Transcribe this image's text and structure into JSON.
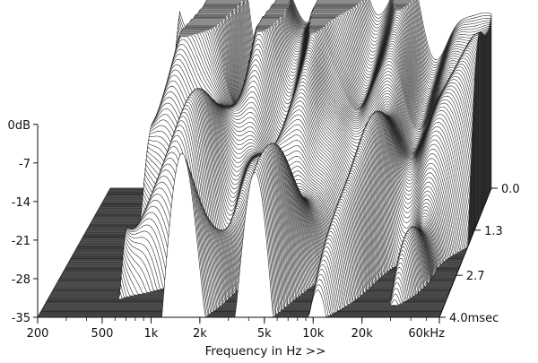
{
  "chart_data": {
    "type": "waterfall",
    "xlabel": "Frequency in Hz >>",
    "x_scale": "log",
    "x_ticks": [
      {
        "value": 200,
        "label": "200"
      },
      {
        "value": 500,
        "label": "500"
      },
      {
        "value": 1000,
        "label": "1k"
      },
      {
        "value": 2000,
        "label": "2k"
      },
      {
        "value": 5000,
        "label": "5k"
      },
      {
        "value": 10000,
        "label": "10k"
      },
      {
        "value": 20000,
        "label": "20k"
      },
      {
        "value": 60000,
        "label": "60kHz"
      }
    ],
    "xlim": [
      200,
      60000
    ],
    "y_ticks": [
      {
        "value": 0,
        "label": "0dB"
      },
      {
        "value": -7,
        "label": "-7"
      },
      {
        "value": -14,
        "label": "-14"
      },
      {
        "value": -21,
        "label": "-21"
      },
      {
        "value": -28,
        "label": "-28"
      },
      {
        "value": -35,
        "label": "-35"
      }
    ],
    "ylim": [
      -35,
      0
    ],
    "t_ticks": [
      {
        "value": 0.0,
        "label": "0.0"
      },
      {
        "value": 1.3,
        "label": "1.3"
      },
      {
        "value": 2.7,
        "label": "2.7"
      },
      {
        "value": 4.0,
        "label": "4.0msec"
      }
    ],
    "tlim": [
      0,
      4.0
    ],
    "colors": {
      "floor": "#8a8a8a",
      "slice_line": "#1a1a1a",
      "slice_fill": "#ffffff"
    }
  }
}
